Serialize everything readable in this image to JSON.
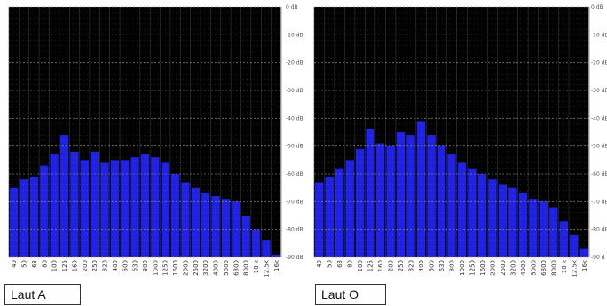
{
  "colors": {
    "background": "#000000",
    "bar": "#1f22e6",
    "grid": "#8a8a8a",
    "frame": "#bdbdbd"
  },
  "chart_data": [
    {
      "type": "bar",
      "caption": "Laut A",
      "categories": [
        "40",
        "50",
        "63",
        "80",
        "100",
        "125",
        "160",
        "200",
        "250",
        "320",
        "400",
        "500",
        "630",
        "800",
        "1000",
        "1250",
        "1600",
        "2000",
        "2500",
        "3200",
        "4000",
        "5000",
        "6300",
        "8000",
        "10 k",
        "12.5k",
        "16k"
      ],
      "values": [
        -65,
        -62,
        -61,
        -57,
        -53,
        -46,
        -52,
        -55,
        -52,
        -56,
        -55,
        -55,
        -54,
        -53,
        -54,
        -56,
        -60,
        -63,
        -65,
        -67,
        -68,
        -69,
        -70,
        -75,
        -80,
        -84,
        -89
      ],
      "ylim": [
        -90,
        0
      ],
      "yticks": [
        "0 dB",
        "-10 dB",
        "-20 dB",
        "-30 dB",
        "-40 dB",
        "-50 dB",
        "-60 dB",
        "-70 dB",
        "-80 dB",
        "-90 dB"
      ],
      "grid": true
    },
    {
      "type": "bar",
      "caption": "Laut O",
      "categories": [
        "40",
        "50",
        "63",
        "80",
        "100",
        "125",
        "160",
        "200",
        "250",
        "320",
        "400",
        "500",
        "630",
        "800",
        "1000",
        "1250",
        "1600",
        "2000",
        "2500",
        "3200",
        "4000",
        "5000",
        "6300",
        "8000",
        "10 k",
        "12.5k",
        "16k"
      ],
      "values": [
        -63,
        -61,
        -58,
        -55,
        -51,
        -44,
        -49,
        -50,
        -45,
        -46,
        -41,
        -46,
        -50,
        -53,
        -56,
        -58,
        -60,
        -62,
        -64,
        -65,
        -67,
        -69,
        -70,
        -72,
        -77,
        -82,
        -87
      ],
      "ylim": [
        -90,
        0
      ],
      "yticks": [
        "0 dB",
        "-10 dB",
        "-20 dB",
        "-30 dB",
        "-40 dB",
        "-50 dB",
        "-60 dB",
        "-70 dB",
        "-80 dB",
        "-90 d"
      ],
      "grid": true
    }
  ]
}
